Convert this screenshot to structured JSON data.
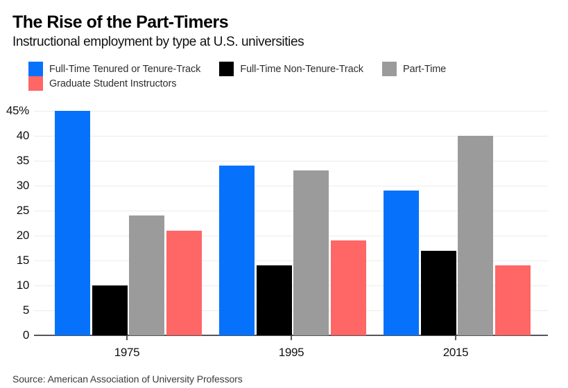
{
  "header": {
    "title": "The Rise of the Part-Timers",
    "subtitle": "Instructional employment by type at U.S. universities"
  },
  "chart_data": {
    "type": "bar",
    "title": "The Rise of the Part-Timers",
    "subtitle": "Instructional employment by type at U.S. universities",
    "categories": [
      "1975",
      "1995",
      "2015"
    ],
    "series": [
      {
        "name": "Full-Time Tenured or Tenure-Track",
        "color": "#0672fb",
        "values": [
          45,
          34,
          29
        ]
      },
      {
        "name": "Full-Time Non-Tenure-Track",
        "color": "#000000",
        "values": [
          10,
          14,
          17
        ]
      },
      {
        "name": "Part-Time",
        "color": "#9b9b9b",
        "values": [
          24,
          33,
          40
        ]
      },
      {
        "name": "Graduate Student Instructors",
        "color": "#ff6666",
        "values": [
          21,
          19,
          14
        ]
      }
    ],
    "xlabel": "",
    "ylabel": "",
    "ylim": [
      0,
      45
    ],
    "y_ticks": [
      "45%",
      "40",
      "35",
      "30",
      "25",
      "20",
      "15",
      "10",
      "5",
      "0"
    ],
    "y_tick_values": [
      45,
      40,
      35,
      30,
      25,
      20,
      15,
      10,
      5,
      0
    ],
    "grid": "horizontal",
    "legend_position": "top-left",
    "legend_rows": [
      [
        0,
        1,
        2
      ],
      [
        3
      ]
    ]
  },
  "source": {
    "text": "Source: American Association of University Professors"
  }
}
